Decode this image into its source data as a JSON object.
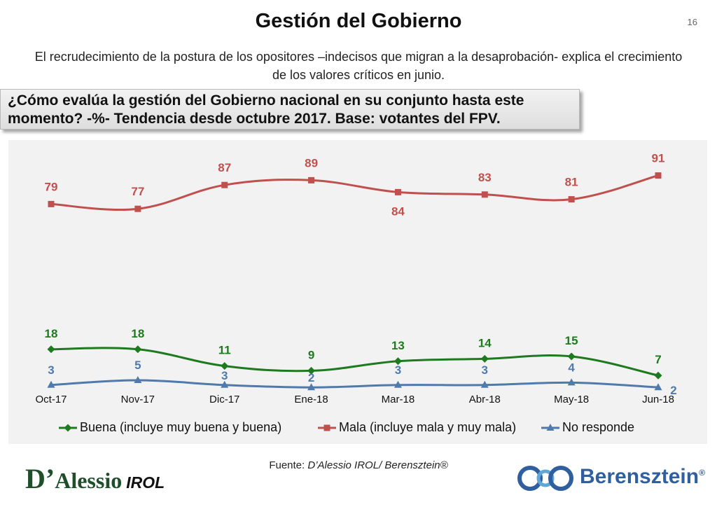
{
  "header": {
    "title": "Gestión del Gobierno",
    "page_number": "16",
    "subtitle": "El recrudecimiento de la postura de los opositores –indecisos que migran a la desaprobación- explica el crecimiento de los valores críticos en junio."
  },
  "question": {
    "line1": "¿Cómo evalúa la gestión del Gobierno nacional en su conjunto hasta este",
    "line2": "momento? -%- Tendencia desde octubre 2017. Base: votantes del FPV."
  },
  "chart_data": {
    "type": "line",
    "categories": [
      "Oct-17",
      "Nov-17",
      "Dic-17",
      "Ene-18",
      "Mar-18",
      "Abr-18",
      "May-18",
      "Jun-18"
    ],
    "ylim": [
      0,
      100
    ],
    "grid": false,
    "legend": "bottom",
    "series": [
      {
        "name": "Buena (incluye muy buena y buena)",
        "color": "#1e7a1e",
        "marker": "diamond",
        "values": [
          18,
          18,
          11,
          9,
          13,
          14,
          15,
          7
        ]
      },
      {
        "name": "Mala (incluye mala y muy mala)",
        "color": "#c0504d",
        "marker": "square",
        "values": [
          79,
          77,
          87,
          89,
          84,
          83,
          81,
          91
        ]
      },
      {
        "name": "No responde",
        "color": "#4f7aab",
        "marker": "triangle",
        "values": [
          3,
          5,
          3,
          2,
          3,
          3,
          4,
          2
        ]
      }
    ]
  },
  "footer": {
    "source_prefix": "Fuente: ",
    "source_text": "D’Alessio IROL/ Berensztein®",
    "logo_left_initial": "D’",
    "logo_left_rest": "Alessio",
    "logo_left_suffix": "IROL",
    "logo_right_name": "Berensztein",
    "logo_right_reg": "®"
  }
}
